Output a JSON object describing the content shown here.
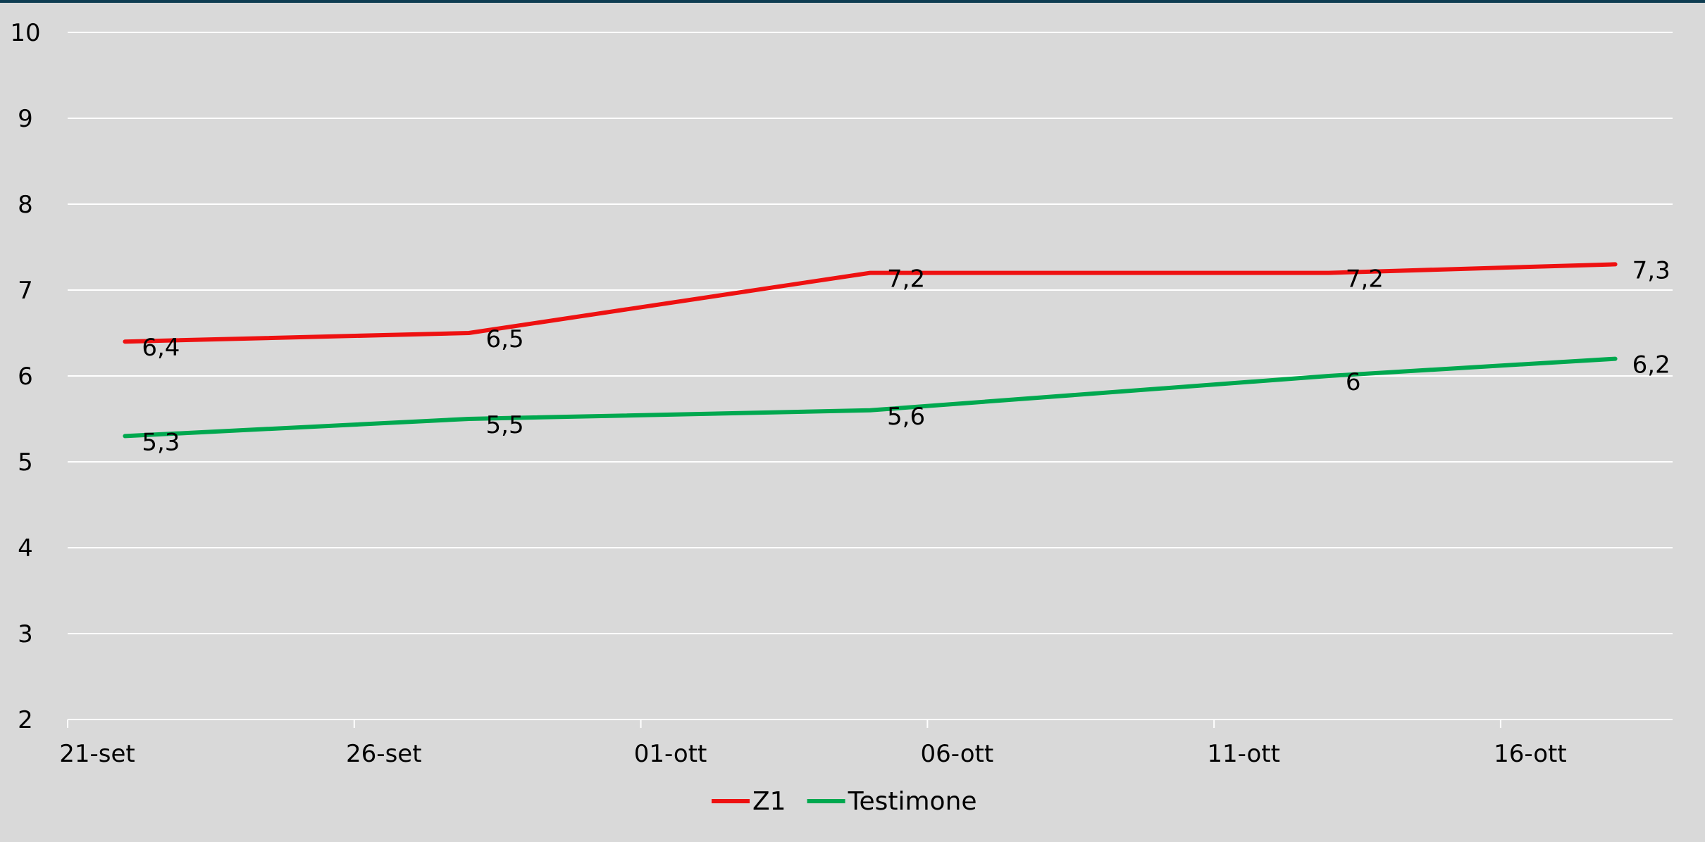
{
  "chart_data": {
    "type": "line",
    "title": "",
    "xlabel": "",
    "ylabel": "",
    "x_axis": {
      "type": "date",
      "min": "2023-09-21",
      "max": "2023-10-19",
      "ticks": [
        "2023-09-21",
        "2023-09-26",
        "2023-10-01",
        "2023-10-06",
        "2023-10-11",
        "2023-10-16"
      ],
      "tick_labels": [
        "21-set",
        "26-set",
        "01-ott",
        "06-ott",
        "11-ott",
        "16-ott"
      ]
    },
    "y_axis": {
      "min": 2,
      "max": 10,
      "ticks": [
        2,
        3,
        4,
        5,
        6,
        7,
        8,
        9,
        10
      ],
      "tick_labels": [
        "2",
        "3",
        "4",
        "5",
        "6",
        "7",
        "8",
        "9",
        "10"
      ]
    },
    "grid": true,
    "legend_position": "bottom",
    "x": [
      "2023-09-22",
      "2023-09-28",
      "2023-10-05",
      "2023-10-13",
      "2023-10-18"
    ],
    "series": [
      {
        "name": "Z1",
        "color": "#ee1111",
        "values": [
          6.4,
          6.5,
          7.2,
          7.2,
          7.3
        ],
        "data_labels": [
          "6,4",
          "6,5",
          "7,2",
          "7,2",
          "7,3"
        ]
      },
      {
        "name": "Testimone",
        "color": "#00a84f",
        "values": [
          5.3,
          5.5,
          5.6,
          6.0,
          6.2
        ],
        "data_labels": [
          "5,3",
          "5,5",
          "5,6",
          "6",
          "6,2"
        ]
      }
    ]
  }
}
